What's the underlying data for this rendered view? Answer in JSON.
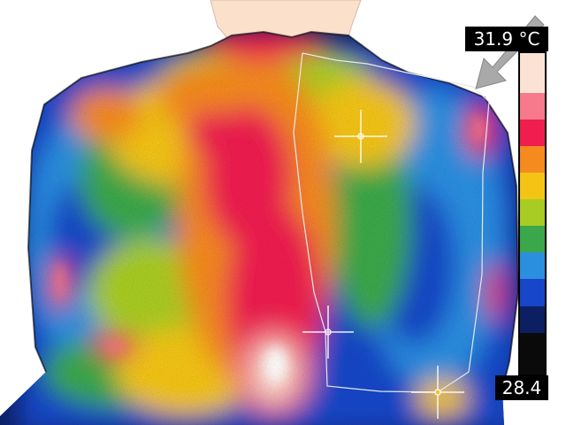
{
  "image": {
    "subject": "thermal-image-upper-back",
    "palette": [
      "#0a0a0a",
      "#0d1f63",
      "#1846c8",
      "#2b8fe0",
      "#3aa84a",
      "#a8cc24",
      "#f3c414",
      "#f58a1e",
      "#ef1e4f",
      "#f67a8b",
      "#fbe2d4"
    ],
    "background_color": "#ffffff",
    "skin_color": "#fbe0cc"
  },
  "scale": {
    "max_label": "31.9 °C",
    "min_label": "28.4",
    "max": 31.9,
    "min": 28.4
  },
  "icons": {
    "pointer": "arrow-icon"
  }
}
